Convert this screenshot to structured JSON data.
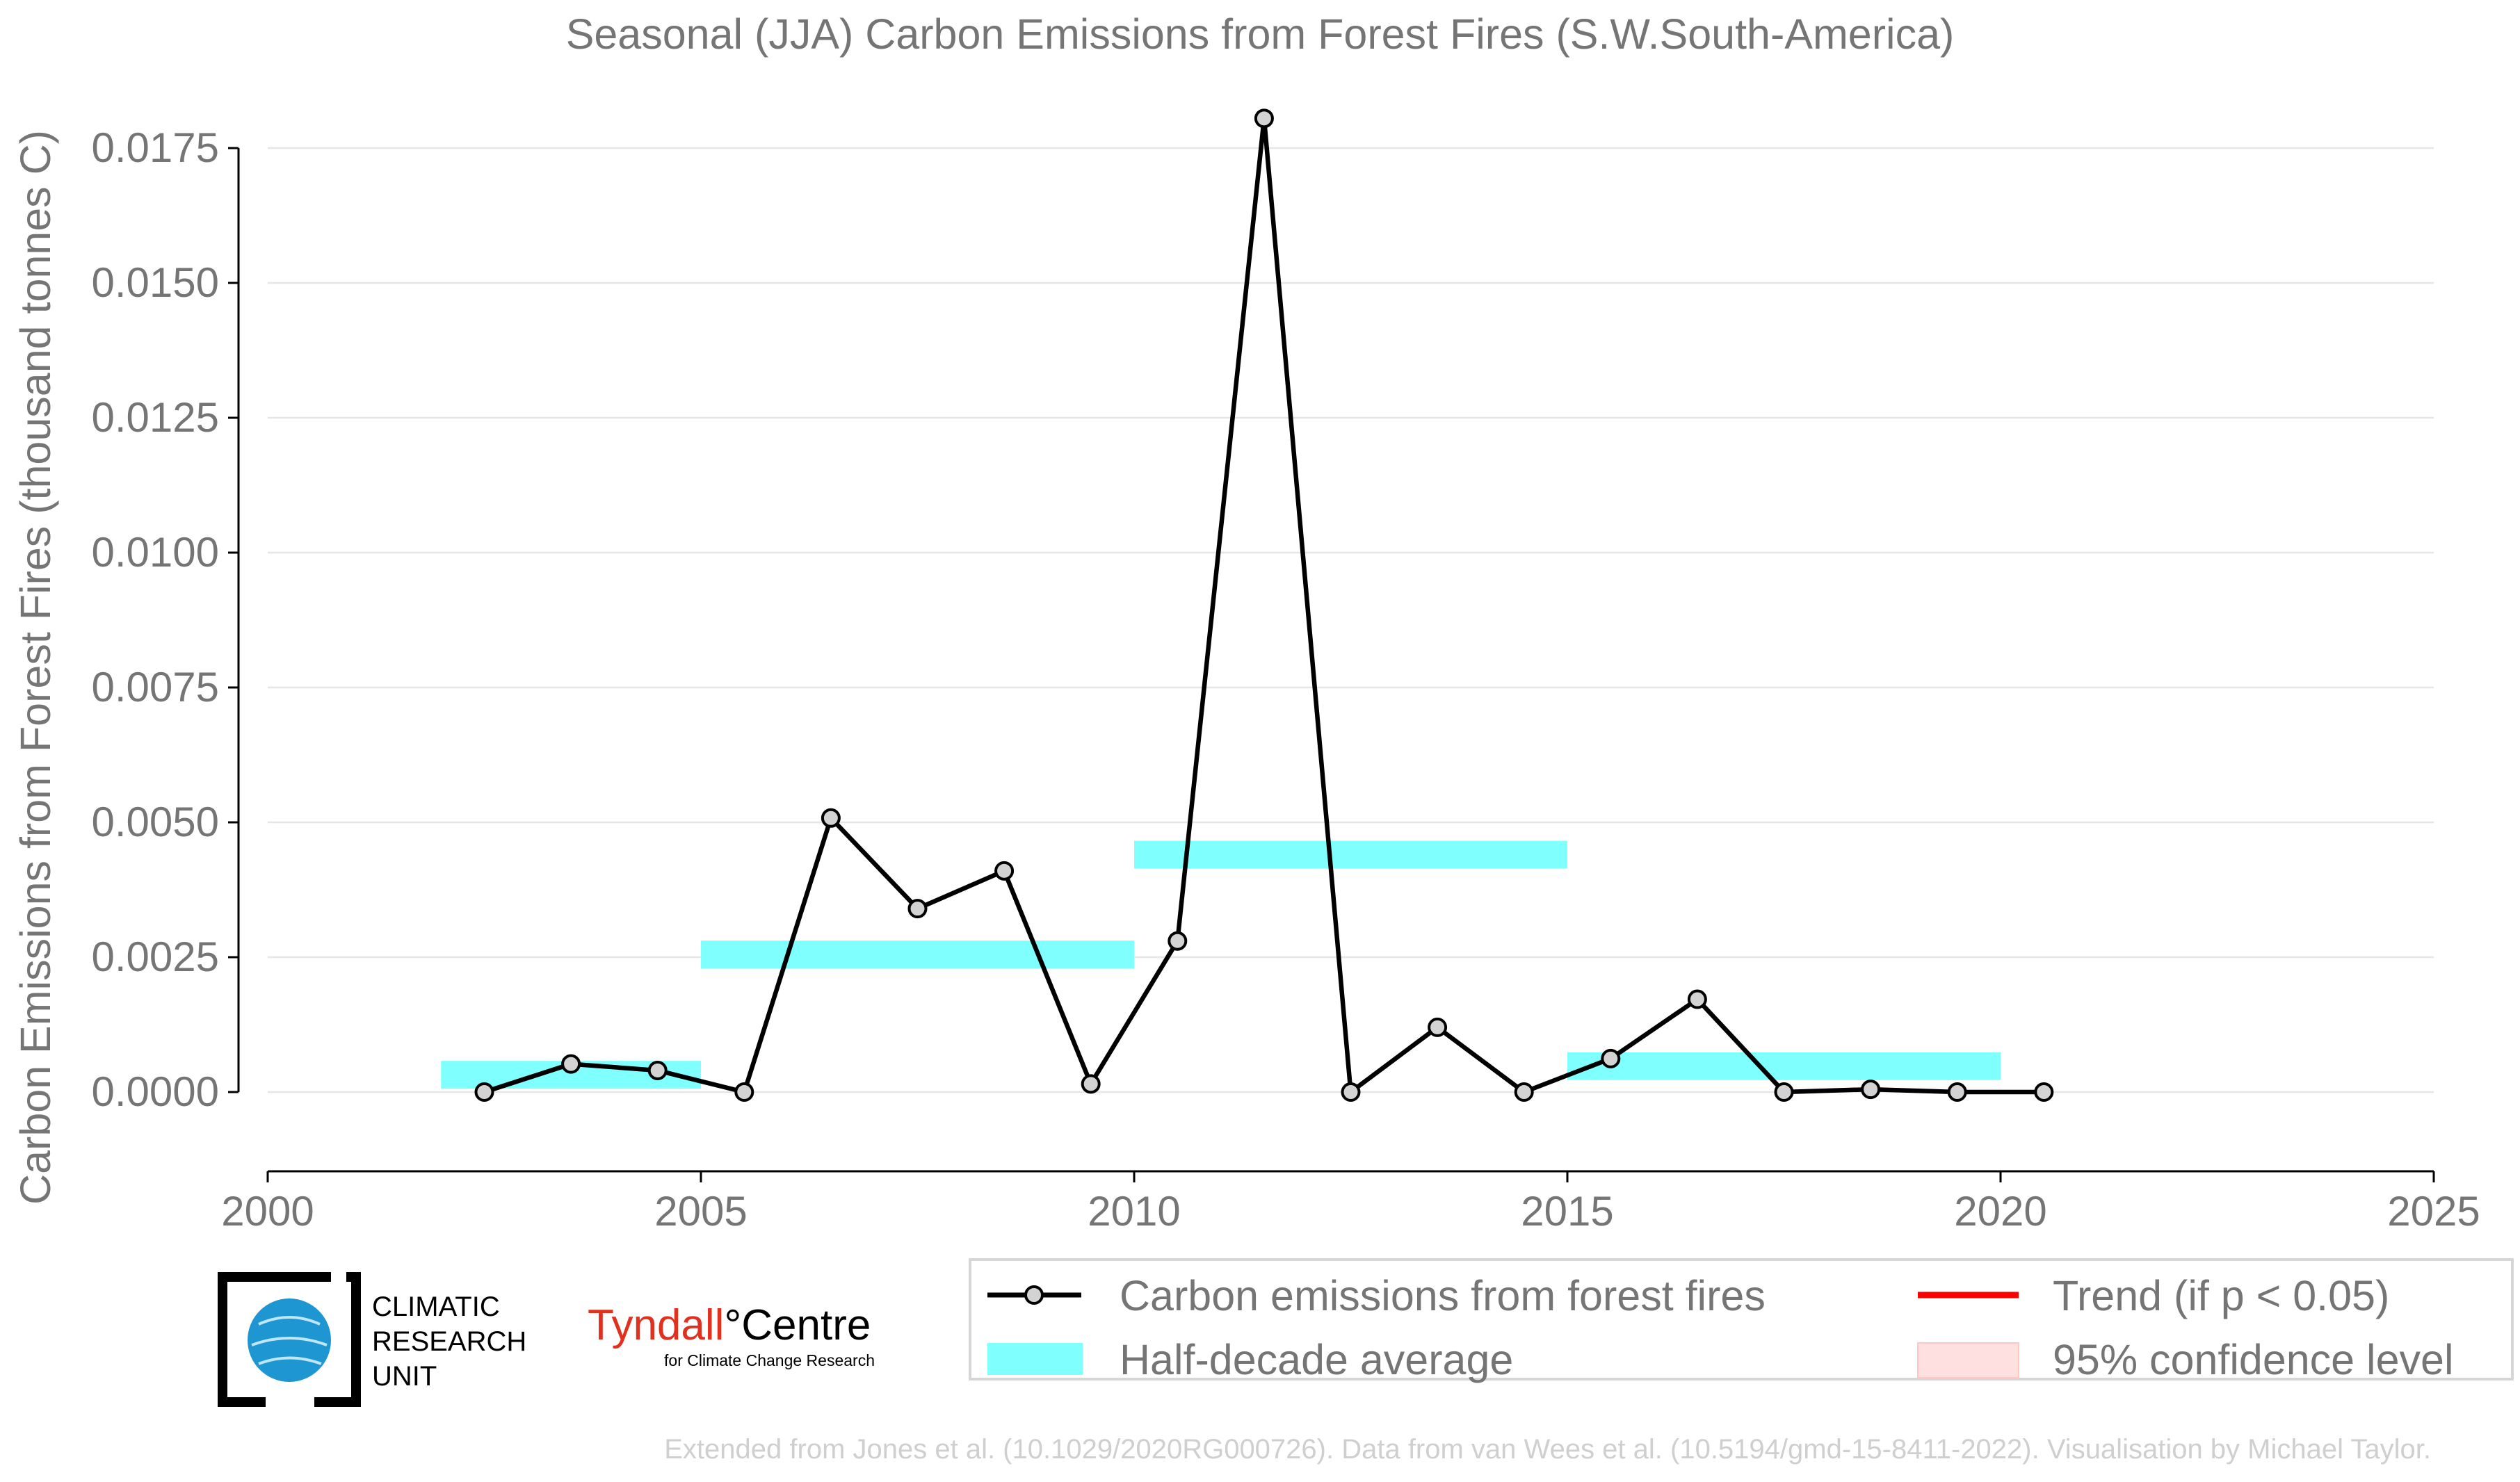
{
  "chart_data": {
    "type": "line",
    "title": "Seasonal (JJA) Carbon Emissions from Forest Fires (S.W.South-America)",
    "xlabel": "",
    "ylabel": "Carbon Emissions from Forest Fires (thousand tonnes C)",
    "xlim": [
      2000,
      2025
    ],
    "ylim": [
      -0.0007,
      0.0183
    ],
    "x_ticks": [
      2000,
      2005,
      2010,
      2015,
      2020,
      2025
    ],
    "y_ticks": [
      0.0,
      0.0025,
      0.005,
      0.0075,
      0.01,
      0.0125,
      0.015,
      0.0175
    ],
    "x_tick_labels": [
      "2000",
      "2005",
      "2010",
      "2015",
      "2020",
      "2025"
    ],
    "y_tick_labels": [
      "0.0000",
      "0.0025",
      "0.0050",
      "0.0075",
      "0.0100",
      "0.0125",
      "0.0150",
      "0.0175"
    ],
    "grid": "horizontal",
    "legend_position": "bottom-right",
    "series": [
      {
        "name": "Carbon emissions from forest fires",
        "color": "#000000",
        "marker_fill": "#d3d3d3",
        "x": [
          2002.5,
          2003.5,
          2004.5,
          2005.5,
          2006.5,
          2007.5,
          2008.5,
          2009.5,
          2010.5,
          2011.5,
          2012.5,
          2013.5,
          2014.5,
          2015.5,
          2016.5,
          2017.5,
          2018.5,
          2019.5,
          2020.5
        ],
        "y": [
          0.0,
          0.00052,
          0.0004,
          0.0,
          0.00508,
          0.0034,
          0.0041,
          0.00015,
          0.0028,
          0.01805,
          0.0,
          0.0012,
          0.0,
          0.00062,
          0.00172,
          0.0,
          5e-05,
          0.0,
          0.0
        ]
      }
    ],
    "half_decade_average": {
      "name": "Half-decade average",
      "color": "#80ffff",
      "segments": [
        {
          "x_start": 2002,
          "x_end": 2005,
          "y": 0.00032
        },
        {
          "x_start": 2005,
          "x_end": 2010,
          "y": 0.00255
        },
        {
          "x_start": 2010,
          "x_end": 2015,
          "y": 0.0044
        },
        {
          "x_start": 2015,
          "x_end": 2020,
          "y": 0.00048
        }
      ]
    },
    "legend": {
      "entries": [
        {
          "label": "Carbon emissions from forest fires",
          "kind": "line-marker",
          "color": "#000000"
        },
        {
          "label": "Trend (if p < 0.05)",
          "kind": "line",
          "color": "#ff0000"
        },
        {
          "label": "Half-decade average",
          "kind": "band",
          "color": "#80ffff"
        },
        {
          "label": "95% confidence level",
          "kind": "band",
          "color": "#ffe0e0"
        }
      ]
    }
  },
  "logos": {
    "cru": {
      "line1": "CLIMATIC",
      "line2": "RESEARCH",
      "line3": "UNIT"
    },
    "tyndall": {
      "name_part1": "Tyndall",
      "name_part2": "°Centre",
      "tagline": "for Climate Change Research"
    }
  },
  "footer": {
    "credit": "Extended from Jones et al. (10.1029/2020RG000726). Data from van Wees et al. (10.5194/gmd-15-8411-2022). Visualisation by Michael Taylor."
  },
  "colors": {
    "text_gray": "#757575",
    "grid": "#e6e6e6",
    "axis": "#000000",
    "footer_text": "#cfcfcf",
    "tyndall_red": "#e0301e",
    "cru_blue": "#1e96d2"
  }
}
